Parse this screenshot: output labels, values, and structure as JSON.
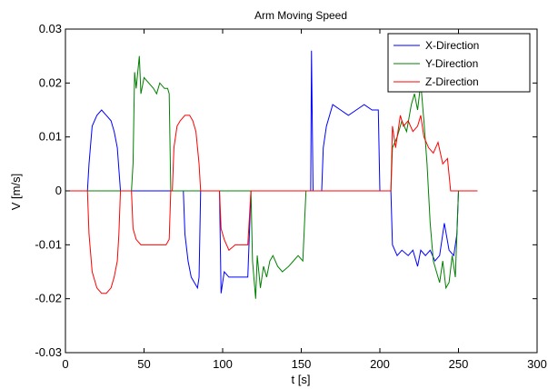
{
  "chart_data": {
    "type": "line",
    "title": "Arm Moving Speed",
    "xlabel": "t [s]",
    "ylabel": "V [m/s]",
    "xlim": [
      0,
      300
    ],
    "ylim": [
      -0.03,
      0.03
    ],
    "xticks": [
      0,
      50,
      100,
      150,
      200,
      250,
      300
    ],
    "yticks": [
      -0.03,
      -0.02,
      -0.01,
      0,
      0.01,
      0.02,
      0.03
    ],
    "xtick_labels": [
      "0",
      "50",
      "100",
      "150",
      "200",
      "250",
      "300"
    ],
    "ytick_labels": [
      "-0.03",
      "-0.02",
      "-0.01",
      "0",
      "0.01",
      "0.02",
      "0.03"
    ],
    "grid": false,
    "legend_position": "top-right",
    "series": [
      {
        "name": "X-Direction",
        "color": "#0000ff",
        "points": [
          [
            0,
            0
          ],
          [
            14,
            0
          ],
          [
            15,
            0.005
          ],
          [
            17,
            0.012
          ],
          [
            20,
            0.014
          ],
          [
            23,
            0.015
          ],
          [
            26,
            0.014
          ],
          [
            29,
            0.013
          ],
          [
            31,
            0.011
          ],
          [
            33,
            0.008
          ],
          [
            34,
            0.004
          ],
          [
            35,
            0
          ],
          [
            75,
            0
          ],
          [
            76,
            -0.008
          ],
          [
            78,
            -0.013
          ],
          [
            80,
            -0.016
          ],
          [
            82,
            -0.017
          ],
          [
            84,
            -0.018
          ],
          [
            85,
            -0.016
          ],
          [
            86,
            0
          ],
          [
            98,
            0
          ],
          [
            99,
            -0.019
          ],
          [
            101,
            -0.015
          ],
          [
            104,
            -0.016
          ],
          [
            108,
            -0.016
          ],
          [
            112,
            -0.016
          ],
          [
            116,
            -0.016
          ],
          [
            118,
            0
          ],
          [
            156,
            0
          ],
          [
            156.5,
            0.026
          ],
          [
            157.5,
            0
          ],
          [
            158,
            0
          ],
          [
            163,
            0
          ],
          [
            164,
            0.008
          ],
          [
            166,
            0.012
          ],
          [
            170,
            0.016
          ],
          [
            175,
            0.015
          ],
          [
            180,
            0.014
          ],
          [
            185,
            0.015
          ],
          [
            190,
            0.016
          ],
          [
            195,
            0.015
          ],
          [
            199,
            0.015
          ],
          [
            200,
            0
          ],
          [
            207,
            0
          ],
          [
            208,
            -0.01
          ],
          [
            211,
            -0.012
          ],
          [
            214,
            -0.011
          ],
          [
            218,
            -0.012
          ],
          [
            221,
            -0.011
          ],
          [
            224,
            -0.014
          ],
          [
            226,
            -0.011
          ],
          [
            229,
            -0.012
          ],
          [
            232,
            -0.011
          ],
          [
            235,
            -0.013
          ],
          [
            238,
            -0.012
          ],
          [
            241,
            -0.006
          ],
          [
            244,
            -0.011
          ],
          [
            247,
            -0.012
          ],
          [
            249,
            -0.008
          ],
          [
            250,
            0
          ],
          [
            262,
            0
          ]
        ]
      },
      {
        "name": "Y-Direction",
        "color": "#008000",
        "points": [
          [
            0,
            0
          ],
          [
            42,
            0
          ],
          [
            43,
            0.005
          ],
          [
            44,
            0.022
          ],
          [
            45,
            0.019
          ],
          [
            47,
            0.025
          ],
          [
            48,
            0.018
          ],
          [
            50,
            0.021
          ],
          [
            53,
            0.02
          ],
          [
            56,
            0.019
          ],
          [
            58,
            0.018
          ],
          [
            60,
            0.02
          ],
          [
            63,
            0.019
          ],
          [
            65,
            0.019
          ],
          [
            66,
            0.018
          ],
          [
            67,
            0
          ],
          [
            118,
            0
          ],
          [
            119,
            -0.013
          ],
          [
            121,
            -0.02
          ],
          [
            122,
            -0.012
          ],
          [
            124,
            -0.018
          ],
          [
            126,
            -0.014
          ],
          [
            128,
            -0.016
          ],
          [
            130,
            -0.013
          ],
          [
            132,
            -0.012
          ],
          [
            135,
            -0.014
          ],
          [
            138,
            -0.015
          ],
          [
            142,
            -0.014
          ],
          [
            145,
            -0.013
          ],
          [
            148,
            -0.012
          ],
          [
            151,
            -0.013
          ],
          [
            153,
            0
          ],
          [
            207,
            0
          ],
          [
            208,
            0.008
          ],
          [
            211,
            0.01
          ],
          [
            214,
            0.013
          ],
          [
            217,
            0.011
          ],
          [
            220,
            0.016
          ],
          [
            222,
            0.018
          ],
          [
            224,
            0.015
          ],
          [
            226,
            0.02
          ],
          [
            228,
            0.013
          ],
          [
            230,
            0.005
          ],
          [
            232,
            -0.006
          ],
          [
            234,
            -0.013
          ],
          [
            236,
            -0.015
          ],
          [
            238,
            -0.017
          ],
          [
            240,
            -0.013
          ],
          [
            242,
            -0.018
          ],
          [
            244,
            -0.017
          ],
          [
            246,
            -0.012
          ],
          [
            248,
            -0.016
          ],
          [
            250,
            0
          ],
          [
            262,
            0
          ]
        ]
      },
      {
        "name": "Z-Direction",
        "color": "#ff0000",
        "points": [
          [
            0,
            0
          ],
          [
            14,
            0
          ],
          [
            15,
            -0.008
          ],
          [
            17,
            -0.015
          ],
          [
            20,
            -0.018
          ],
          [
            23,
            -0.019
          ],
          [
            26,
            -0.019
          ],
          [
            29,
            -0.018
          ],
          [
            31,
            -0.016
          ],
          [
            33,
            -0.013
          ],
          [
            34,
            -0.008
          ],
          [
            35,
            0
          ],
          [
            42,
            0
          ],
          [
            43,
            -0.007
          ],
          [
            45,
            -0.009
          ],
          [
            48,
            -0.01
          ],
          [
            52,
            -0.01
          ],
          [
            56,
            -0.01
          ],
          [
            60,
            -0.01
          ],
          [
            64,
            -0.01
          ],
          [
            66,
            -0.009
          ],
          [
            67,
            0
          ],
          [
            68,
            0
          ],
          [
            69,
            0.008
          ],
          [
            71,
            0.012
          ],
          [
            73,
            0.013
          ],
          [
            76,
            0.014
          ],
          [
            79,
            0.014
          ],
          [
            81,
            0.013
          ],
          [
            83,
            0.011
          ],
          [
            85,
            0.005
          ],
          [
            86,
            0
          ],
          [
            98,
            0
          ],
          [
            99,
            -0.007
          ],
          [
            101,
            -0.009
          ],
          [
            104,
            -0.011
          ],
          [
            108,
            -0.01
          ],
          [
            112,
            -0.01
          ],
          [
            116,
            -0.01
          ],
          [
            118,
            0
          ],
          [
            207,
            0
          ],
          [
            208,
            0.012
          ],
          [
            210,
            0.008
          ],
          [
            213,
            0.014
          ],
          [
            215,
            0.012
          ],
          [
            218,
            0.013
          ],
          [
            221,
            0.011
          ],
          [
            224,
            0.012
          ],
          [
            226,
            0.014
          ],
          [
            228,
            0.01
          ],
          [
            231,
            0.008
          ],
          [
            234,
            0.007
          ],
          [
            237,
            0.009
          ],
          [
            240,
            0.005
          ],
          [
            243,
            0.006
          ],
          [
            245,
            0
          ],
          [
            262,
            0
          ]
        ]
      }
    ]
  }
}
